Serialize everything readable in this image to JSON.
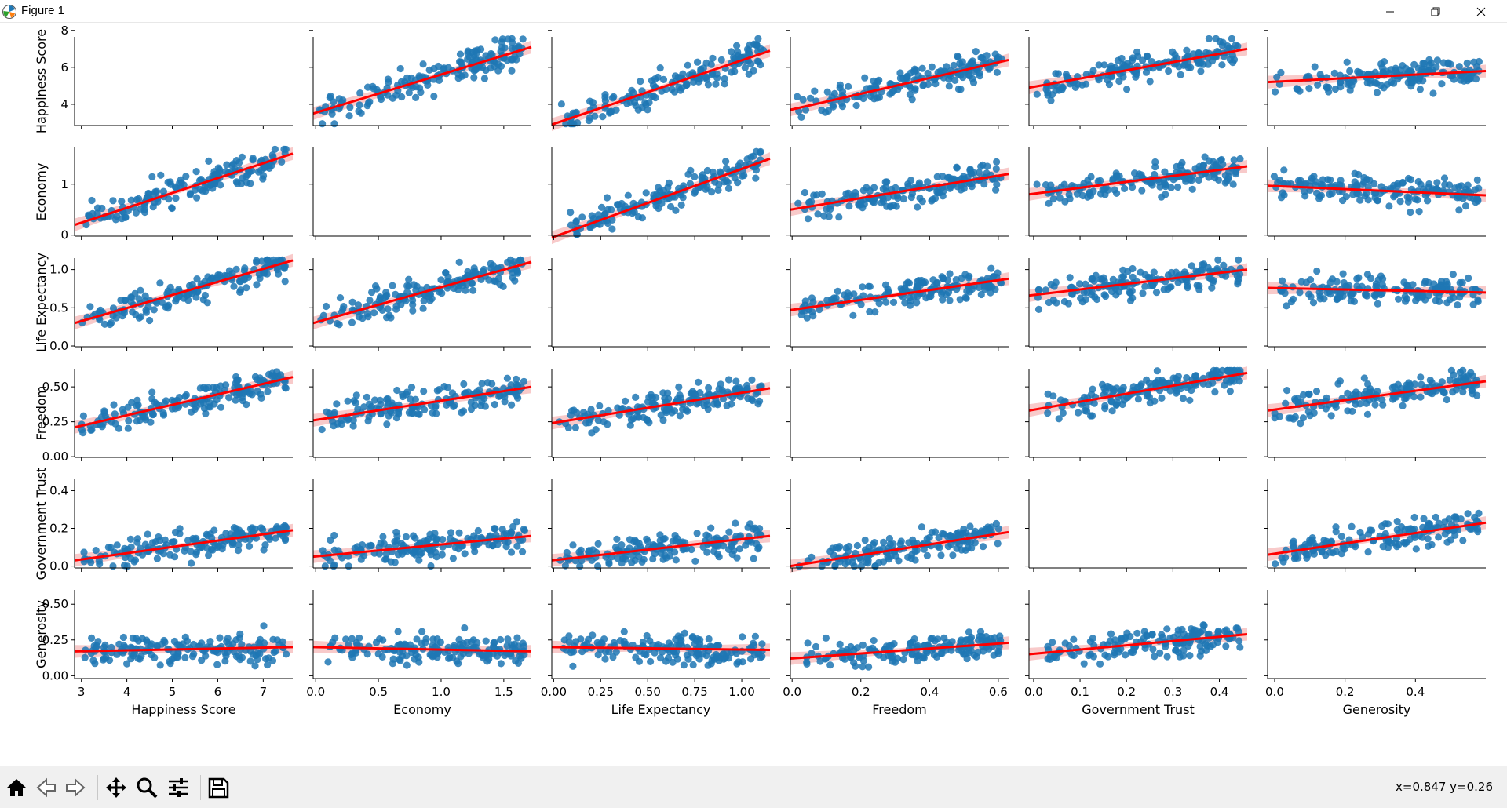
{
  "window": {
    "title": "Figure 1",
    "icon": "matplotlib-icon",
    "controls": [
      "minimize-icon",
      "restore-icon",
      "close-icon"
    ]
  },
  "toolbar": {
    "buttons": [
      "home-icon",
      "back-arrow-icon",
      "forward-arrow-icon",
      "pan-icon",
      "zoom-icon",
      "configure-subplots-icon",
      "save-icon"
    ],
    "status": "x=0.847 y=0.26"
  },
  "colors": {
    "points": "#1f77b4",
    "fit_line": "#ff0000",
    "ci_band": "#f4a6a6"
  },
  "chart_data": {
    "type": "scatter",
    "layout": "6x6 pairplot, scatter with linear regression fit and 95% confidence band; diagonal panels empty",
    "variables": [
      "Happiness Score",
      "Economy",
      "Life Expectancy",
      "Freedom",
      "Government Trust",
      "Generosity"
    ],
    "ranges": [
      [
        2.85,
        7.65
      ],
      [
        -0.02,
        1.72
      ],
      [
        -0.01,
        1.15
      ],
      [
        -0.005,
        0.63
      ],
      [
        -0.01,
        0.46
      ],
      [
        -0.02,
        0.6
      ]
    ],
    "yticks": [
      [
        "4",
        "6",
        "8"
      ],
      [
        "0",
        "1"
      ],
      [
        "0.0",
        "0.5",
        "1.0"
      ],
      [
        "0.00",
        "0.25",
        "0.50"
      ],
      [
        "0.0",
        "0.2",
        "0.4"
      ],
      [
        "0.00",
        "0.25",
        "0.50"
      ]
    ],
    "xticks": [
      [
        "3",
        "4",
        "5",
        "6",
        "7"
      ],
      [
        "0.0",
        "0.5",
        "1.0",
        "1.5"
      ],
      [
        "0.00",
        "0.25",
        "0.50",
        "0.75",
        "1.00"
      ],
      [
        "0.0",
        "0.2",
        "0.4",
        "0.6"
      ],
      [
        "0.0",
        "0.1",
        "0.2",
        "0.3",
        "0.4"
      ],
      [
        "0.0",
        "0.2",
        "0.4"
      ]
    ],
    "n_points": 158,
    "regression_lines": [
      {
        "y": "Happiness Score",
        "x": "Economy",
        "y_at_xmin": 3.5,
        "y_at_xmax": 7.1
      },
      {
        "y": "Happiness Score",
        "x": "Life Expectancy",
        "y_at_xmin": 2.9,
        "y_at_xmax": 6.9
      },
      {
        "y": "Happiness Score",
        "x": "Freedom",
        "y_at_xmin": 3.7,
        "y_at_xmax": 6.4
      },
      {
        "y": "Happiness Score",
        "x": "Government Trust",
        "y_at_xmin": 4.9,
        "y_at_xmax": 7.0
      },
      {
        "y": "Happiness Score",
        "x": "Generosity",
        "y_at_xmin": 5.2,
        "y_at_xmax": 5.8
      },
      {
        "y": "Economy",
        "x": "Happiness Score",
        "y_at_xmin": 0.2,
        "y_at_xmax": 1.6
      },
      {
        "y": "Economy",
        "x": "Life Expectancy",
        "y_at_xmin": -0.05,
        "y_at_xmax": 1.5
      },
      {
        "y": "Economy",
        "x": "Freedom",
        "y_at_xmin": 0.5,
        "y_at_xmax": 1.2
      },
      {
        "y": "Economy",
        "x": "Government Trust",
        "y_at_xmin": 0.8,
        "y_at_xmax": 1.35
      },
      {
        "y": "Economy",
        "x": "Generosity",
        "y_at_xmin": 0.97,
        "y_at_xmax": 0.78
      },
      {
        "y": "Life Expectancy",
        "x": "Happiness Score",
        "y_at_xmin": 0.3,
        "y_at_xmax": 1.12
      },
      {
        "y": "Life Expectancy",
        "x": "Economy",
        "y_at_xmin": 0.3,
        "y_at_xmax": 1.1
      },
      {
        "y": "Life Expectancy",
        "x": "Freedom",
        "y_at_xmin": 0.47,
        "y_at_xmax": 0.88
      },
      {
        "y": "Life Expectancy",
        "x": "Government Trust",
        "y_at_xmin": 0.66,
        "y_at_xmax": 1.0
      },
      {
        "y": "Life Expectancy",
        "x": "Generosity",
        "y_at_xmin": 0.76,
        "y_at_xmax": 0.7
      },
      {
        "y": "Freedom",
        "x": "Happiness Score",
        "y_at_xmin": 0.21,
        "y_at_xmax": 0.57
      },
      {
        "y": "Freedom",
        "x": "Economy",
        "y_at_xmin": 0.26,
        "y_at_xmax": 0.5
      },
      {
        "y": "Freedom",
        "x": "Life Expectancy",
        "y_at_xmin": 0.24,
        "y_at_xmax": 0.49
      },
      {
        "y": "Freedom",
        "x": "Government Trust",
        "y_at_xmin": 0.33,
        "y_at_xmax": 0.6
      },
      {
        "y": "Freedom",
        "x": "Generosity",
        "y_at_xmin": 0.33,
        "y_at_xmax": 0.54
      },
      {
        "y": "Government Trust",
        "x": "Happiness Score",
        "y_at_xmin": 0.03,
        "y_at_xmax": 0.19
      },
      {
        "y": "Government Trust",
        "x": "Economy",
        "y_at_xmin": 0.05,
        "y_at_xmax": 0.16
      },
      {
        "y": "Government Trust",
        "x": "Life Expectancy",
        "y_at_xmin": 0.03,
        "y_at_xmax": 0.16
      },
      {
        "y": "Government Trust",
        "x": "Freedom",
        "y_at_xmin": 0.0,
        "y_at_xmax": 0.18
      },
      {
        "y": "Government Trust",
        "x": "Generosity",
        "y_at_xmin": 0.06,
        "y_at_xmax": 0.23
      },
      {
        "y": "Generosity",
        "x": "Happiness Score",
        "y_at_xmin": 0.17,
        "y_at_xmax": 0.2
      },
      {
        "y": "Generosity",
        "x": "Economy",
        "y_at_xmin": 0.2,
        "y_at_xmax": 0.17
      },
      {
        "y": "Generosity",
        "x": "Life Expectancy",
        "y_at_xmin": 0.2,
        "y_at_xmax": 0.18
      },
      {
        "y": "Generosity",
        "x": "Freedom",
        "y_at_xmin": 0.12,
        "y_at_xmax": 0.23
      },
      {
        "y": "Generosity",
        "x": "Government Trust",
        "y_at_xmin": 0.15,
        "y_at_xmax": 0.29
      }
    ]
  }
}
